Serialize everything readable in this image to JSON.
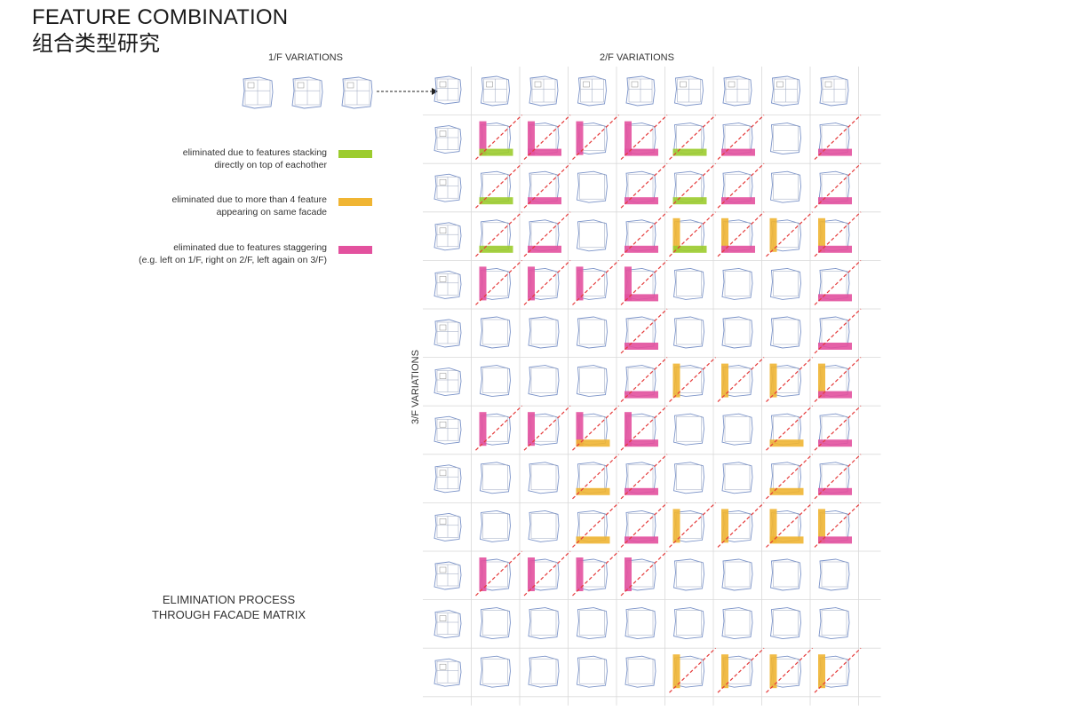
{
  "header": {
    "title": "FEATURE COMBINATION",
    "subtitle": "组合类型研究"
  },
  "axes": {
    "first_floor": "1/F VARIATIONS",
    "second_floor": "2/F VARIATIONS",
    "third_floor": "3/F VARIATIONS"
  },
  "legend": [
    {
      "line1": "eliminated due to features stacking",
      "line2": "directly on top of eachother",
      "color": "#9ccc2e"
    },
    {
      "line1": "eliminated due to more than 4 feature",
      "line2": "appearing on same facade",
      "color": "#f0b533"
    },
    {
      "line1": "eliminated due to features staggering",
      "line2": "(e.g. left on 1/F, right on 2/F, left again on 3/F)",
      "color": "#e3519e"
    }
  ],
  "caption": {
    "line1": "ELIMINATION PROCESS",
    "line2": "THROUGH FACADE MATRIX"
  },
  "colors": {
    "green": "#9ccc2e",
    "orange": "#f0b533",
    "magenta": "#e3519e",
    "plan": "#7b93c8",
    "grid": "#d9d9d9",
    "slash": "#e53a3a"
  },
  "matrix": {
    "rows": [
      [
        {
          "v": "M",
          "b": "G",
          "x": 1
        },
        {
          "v": "M",
          "b": "M",
          "x": 1
        },
        {
          "v": "M",
          "b": "",
          "x": 1
        },
        {
          "v": "M",
          "b": "M",
          "x": 1
        },
        {
          "v": "",
          "b": "G",
          "x": 1
        },
        {
          "v": "",
          "b": "M",
          "x": 1
        },
        {
          "v": "",
          "b": "",
          "x": 0
        },
        {
          "v": "",
          "b": "M",
          "x": 1
        }
      ],
      [
        {
          "v": "",
          "b": "G",
          "x": 1
        },
        {
          "v": "",
          "b": "M",
          "x": 1
        },
        {
          "v": "",
          "b": "",
          "x": 0
        },
        {
          "v": "",
          "b": "M",
          "x": 1
        },
        {
          "v": "",
          "b": "G",
          "x": 1
        },
        {
          "v": "",
          "b": "M",
          "x": 1
        },
        {
          "v": "",
          "b": "",
          "x": 0
        },
        {
          "v": "",
          "b": "M",
          "x": 1
        }
      ],
      [
        {
          "v": "",
          "b": "G",
          "x": 1
        },
        {
          "v": "",
          "b": "M",
          "x": 1
        },
        {
          "v": "",
          "b": "",
          "x": 0
        },
        {
          "v": "",
          "b": "M",
          "x": 1
        },
        {
          "v": "O",
          "b": "G",
          "x": 1
        },
        {
          "v": "O",
          "b": "M",
          "x": 1
        },
        {
          "v": "O",
          "b": "",
          "x": 1
        },
        {
          "v": "O",
          "b": "M",
          "x": 1
        }
      ],
      [
        {
          "v": "M",
          "b": "",
          "x": 1
        },
        {
          "v": "M",
          "b": "",
          "x": 1
        },
        {
          "v": "M",
          "b": "",
          "x": 1
        },
        {
          "v": "M",
          "b": "M",
          "x": 1
        },
        {
          "v": "",
          "b": "",
          "x": 0
        },
        {
          "v": "",
          "b": "",
          "x": 0
        },
        {
          "v": "",
          "b": "",
          "x": 0
        },
        {
          "v": "",
          "b": "M",
          "x": 1
        }
      ],
      [
        {
          "v": "",
          "b": "",
          "x": 0
        },
        {
          "v": "",
          "b": "",
          "x": 0
        },
        {
          "v": "",
          "b": "",
          "x": 0
        },
        {
          "v": "",
          "b": "M",
          "x": 1
        },
        {
          "v": "",
          "b": "",
          "x": 0
        },
        {
          "v": "",
          "b": "",
          "x": 0
        },
        {
          "v": "",
          "b": "",
          "x": 0
        },
        {
          "v": "",
          "b": "M",
          "x": 1
        }
      ],
      [
        {
          "v": "",
          "b": "",
          "x": 0
        },
        {
          "v": "",
          "b": "",
          "x": 0
        },
        {
          "v": "",
          "b": "",
          "x": 0
        },
        {
          "v": "",
          "b": "M",
          "x": 1
        },
        {
          "v": "O",
          "b": "",
          "x": 1
        },
        {
          "v": "O",
          "b": "",
          "x": 1
        },
        {
          "v": "O",
          "b": "",
          "x": 1
        },
        {
          "v": "O",
          "b": "M",
          "x": 1
        }
      ],
      [
        {
          "v": "M",
          "b": "",
          "x": 1
        },
        {
          "v": "M",
          "b": "",
          "x": 1
        },
        {
          "v": "M",
          "b": "O",
          "x": 1
        },
        {
          "v": "M",
          "b": "M",
          "x": 1
        },
        {
          "v": "",
          "b": "",
          "x": 0
        },
        {
          "v": "",
          "b": "",
          "x": 0
        },
        {
          "v": "",
          "b": "O",
          "x": 1
        },
        {
          "v": "",
          "b": "M",
          "x": 1
        }
      ],
      [
        {
          "v": "",
          "b": "",
          "x": 0
        },
        {
          "v": "",
          "b": "",
          "x": 0
        },
        {
          "v": "",
          "b": "O",
          "x": 1
        },
        {
          "v": "",
          "b": "M",
          "x": 1
        },
        {
          "v": "",
          "b": "",
          "x": 0
        },
        {
          "v": "",
          "b": "",
          "x": 0
        },
        {
          "v": "",
          "b": "O",
          "x": 1
        },
        {
          "v": "",
          "b": "M",
          "x": 1
        }
      ],
      [
        {
          "v": "",
          "b": "",
          "x": 0
        },
        {
          "v": "",
          "b": "",
          "x": 0
        },
        {
          "v": "",
          "b": "O",
          "x": 1
        },
        {
          "v": "",
          "b": "M",
          "x": 1
        },
        {
          "v": "O",
          "b": "",
          "x": 1
        },
        {
          "v": "O",
          "b": "",
          "x": 1
        },
        {
          "v": "O",
          "b": "O",
          "x": 1
        },
        {
          "v": "O",
          "b": "M",
          "x": 1
        }
      ],
      [
        {
          "v": "M",
          "b": "",
          "x": 1
        },
        {
          "v": "M",
          "b": "",
          "x": 1
        },
        {
          "v": "M",
          "b": "",
          "x": 1
        },
        {
          "v": "M",
          "b": "",
          "x": 1
        },
        {
          "v": "",
          "b": "",
          "x": 0
        },
        {
          "v": "",
          "b": "",
          "x": 0
        },
        {
          "v": "",
          "b": "",
          "x": 0
        },
        {
          "v": "",
          "b": "",
          "x": 0
        }
      ],
      [
        {
          "v": "",
          "b": "",
          "x": 0
        },
        {
          "v": "",
          "b": "",
          "x": 0
        },
        {
          "v": "",
          "b": "",
          "x": 0
        },
        {
          "v": "",
          "b": "",
          "x": 0
        },
        {
          "v": "",
          "b": "",
          "x": 0
        },
        {
          "v": "",
          "b": "",
          "x": 0
        },
        {
          "v": "",
          "b": "",
          "x": 0
        },
        {
          "v": "",
          "b": "",
          "x": 0
        }
      ],
      [
        {
          "v": "",
          "b": "",
          "x": 0
        },
        {
          "v": "",
          "b": "",
          "x": 0
        },
        {
          "v": "",
          "b": "",
          "x": 0
        },
        {
          "v": "",
          "b": "",
          "x": 0
        },
        {
          "v": "O",
          "b": "",
          "x": 1
        },
        {
          "v": "O",
          "b": "",
          "x": 1
        },
        {
          "v": "O",
          "b": "",
          "x": 1
        },
        {
          "v": "O",
          "b": "",
          "x": 1
        }
      ]
    ]
  }
}
